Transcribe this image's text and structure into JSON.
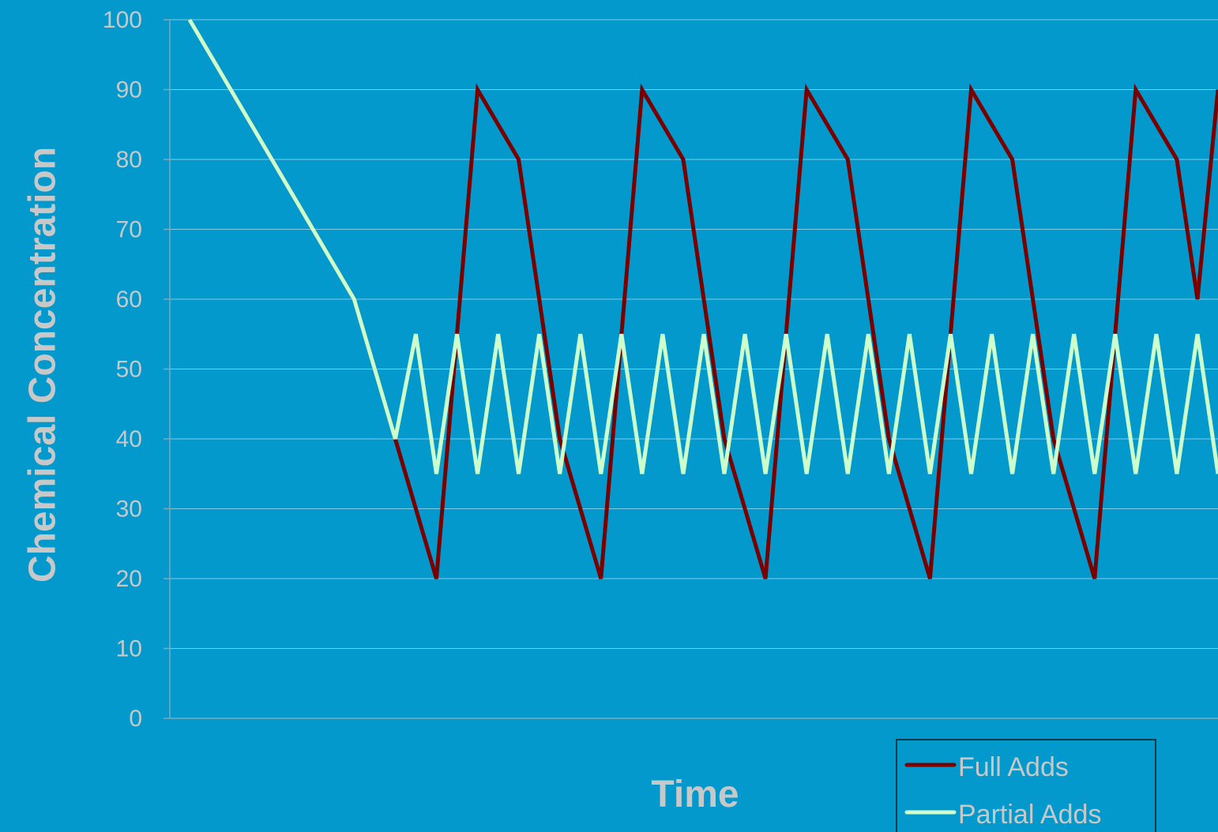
{
  "chart_data": {
    "type": "line",
    "title": "",
    "xlabel": "Time",
    "ylabel": "Chemical Concentration",
    "ylim": [
      0,
      100
    ],
    "yticks": [
      0,
      10,
      20,
      30,
      40,
      50,
      60,
      70,
      80,
      90,
      100
    ],
    "grid": true,
    "legend_position": "bottom-right",
    "colors": {
      "background": "#0399CC",
      "gridline": "#7FCCE6",
      "axis": "#7FA8B8",
      "text": "#C8C8C8"
    },
    "series": [
      {
        "name": "Full Adds",
        "color": "#7A0000",
        "x": [
          0,
          2,
          4,
          6,
          8,
          9,
          10,
          12,
          14,
          16,
          17,
          18,
          20,
          22,
          24,
          25,
          26,
          28,
          30,
          32,
          33,
          34,
          36,
          38,
          40,
          41,
          42,
          44,
          46,
          48,
          49,
          50
        ],
        "values": [
          100,
          90,
          80,
          70,
          60,
          50,
          40,
          20,
          90,
          80,
          60,
          40,
          20,
          90,
          80,
          60,
          40,
          20,
          90,
          80,
          60,
          40,
          20,
          90,
          80,
          60,
          40,
          20,
          90,
          80,
          60,
          90
        ]
      },
      {
        "name": "Partial Adds",
        "color": "#CCFFCC",
        "x": [
          0,
          2,
          4,
          6,
          8,
          9,
          10,
          11,
          12,
          13,
          14,
          15,
          16,
          17,
          18,
          19,
          20,
          21,
          22,
          23,
          24,
          25,
          26,
          27,
          28,
          29,
          30,
          31,
          32,
          33,
          34,
          35,
          36,
          37,
          38,
          39,
          40,
          41,
          42,
          43,
          44,
          45,
          46,
          47,
          48,
          49,
          50
        ],
        "values": [
          100,
          90,
          80,
          70,
          60,
          50,
          40,
          55,
          35,
          55,
          35,
          55,
          35,
          55,
          35,
          55,
          35,
          55,
          35,
          55,
          35,
          55,
          35,
          55,
          35,
          55,
          35,
          55,
          35,
          55,
          35,
          55,
          35,
          55,
          35,
          55,
          35,
          55,
          35,
          55,
          35,
          55,
          35,
          55,
          35,
          55,
          35
        ]
      }
    ]
  }
}
